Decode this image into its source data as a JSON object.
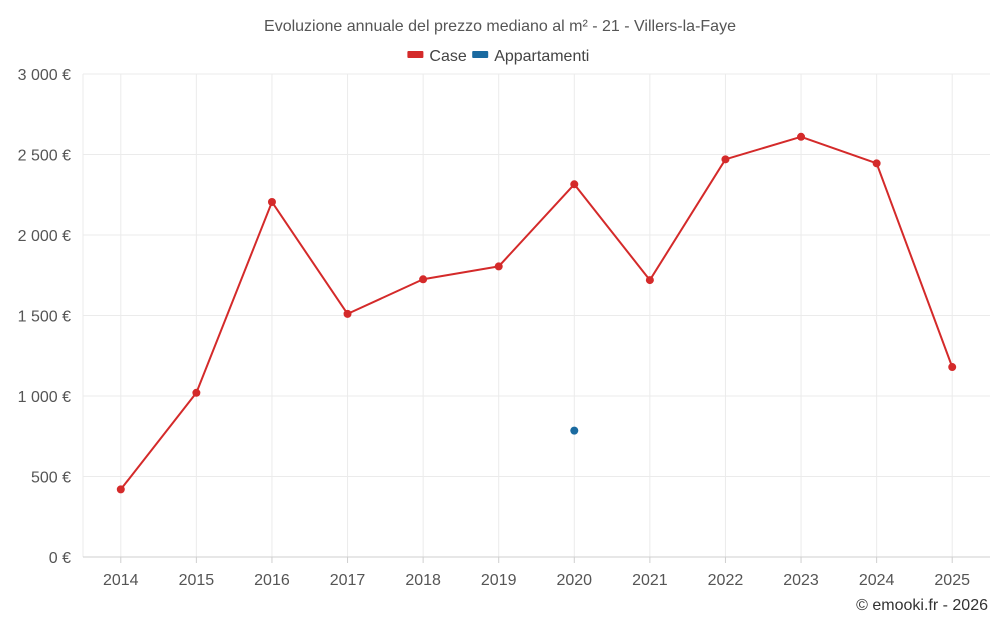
{
  "chart_data": {
    "type": "line",
    "title": "Evoluzione annuale del prezzo mediano al m² - 21 - Villers-la-Faye",
    "categories": [
      "2014",
      "2015",
      "2016",
      "2017",
      "2018",
      "2019",
      "2020",
      "2021",
      "2022",
      "2023",
      "2024",
      "2025"
    ],
    "ylim": [
      0,
      3000
    ],
    "yticks": [
      0,
      500,
      1000,
      1500,
      2000,
      2500,
      3000
    ],
    "ytick_labels": [
      "0 €",
      "500 €",
      "1 000 €",
      "1 500 €",
      "2 000 €",
      "2 500 €",
      "3 000 €"
    ],
    "grid": true,
    "legend_position": "top-center",
    "series": [
      {
        "name": "Case",
        "color": "#d42a2a",
        "values": [
          420,
          1020,
          2205,
          1510,
          1725,
          1805,
          2315,
          1720,
          2470,
          2610,
          2445,
          1180
        ]
      },
      {
        "name": "Appartamenti",
        "color": "#1a6aa0",
        "values": [
          null,
          null,
          null,
          null,
          null,
          null,
          785,
          null,
          null,
          null,
          null,
          null
        ]
      }
    ],
    "credit": "© emooki.fr - 2026"
  }
}
